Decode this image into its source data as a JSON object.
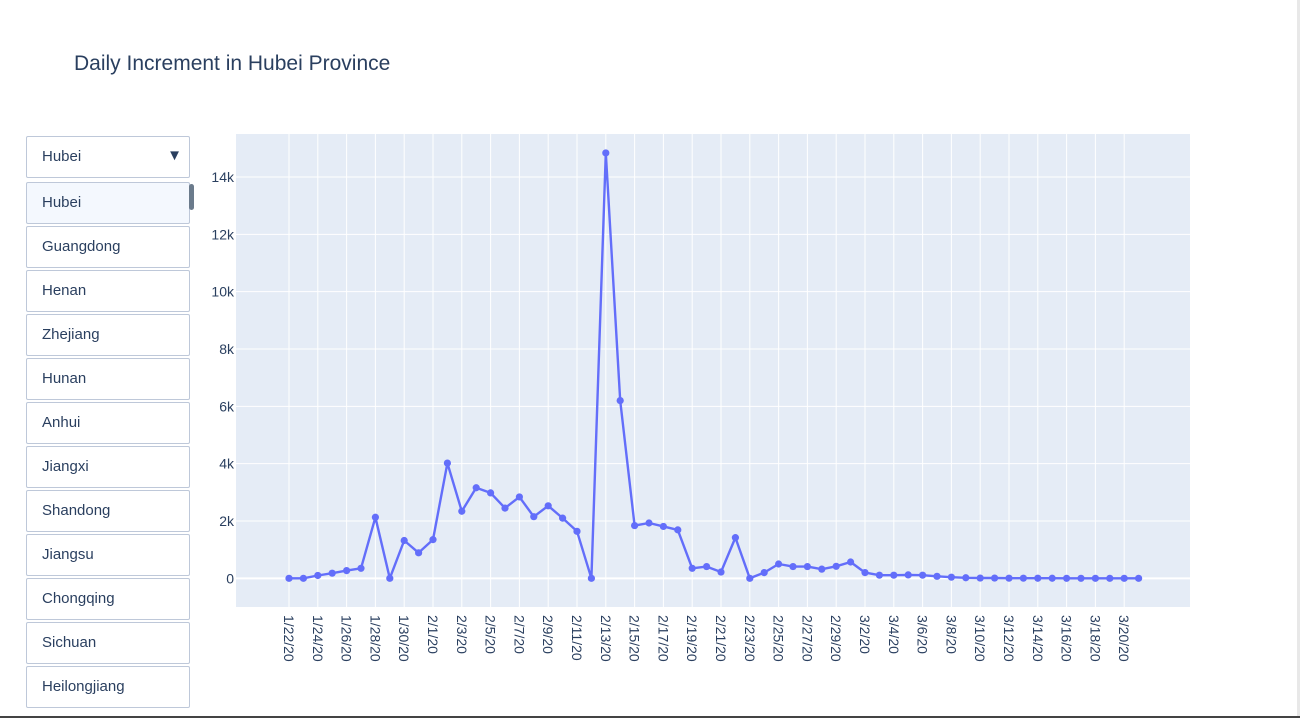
{
  "title": "Daily Increment in Hubei Province",
  "dropdown": {
    "selected": "Hubei",
    "arrow_icon": "triangle-down-icon",
    "options": [
      "Hubei",
      "Guangdong",
      "Henan",
      "Zhejiang",
      "Hunan",
      "Anhui",
      "Jiangxi",
      "Shandong",
      "Jiangsu",
      "Chongqing",
      "Sichuan",
      "Heilongjiang"
    ]
  },
  "colors": {
    "line": "#636efa",
    "plot_bg": "#e5ecf6",
    "grid": "#ffffff",
    "text": "#2a3f5f"
  },
  "chart_data": {
    "type": "line",
    "title": "Daily Increment in Hubei Province",
    "xlabel": "",
    "ylabel": "",
    "ylim": [
      -1000,
      15500
    ],
    "yticks": [
      0,
      2000,
      4000,
      6000,
      8000,
      10000,
      12000,
      14000
    ],
    "ytick_labels": [
      "0",
      "2k",
      "4k",
      "6k",
      "8k",
      "10k",
      "12k",
      "14k"
    ],
    "xtick_labels": [
      "1/22/20",
      "1/24/20",
      "1/26/20",
      "1/28/20",
      "1/30/20",
      "2/1/20",
      "2/3/20",
      "2/5/20",
      "2/7/20",
      "2/9/20",
      "2/11/20",
      "2/13/20",
      "2/15/20",
      "2/17/20",
      "2/19/20",
      "2/21/20",
      "2/23/20",
      "2/25/20",
      "2/27/20",
      "2/29/20",
      "3/2/20",
      "3/4/20",
      "3/6/20",
      "3/8/20",
      "3/10/20",
      "3/12/20",
      "3/14/20",
      "3/16/20",
      "3/18/20",
      "3/20/20"
    ],
    "grid": true,
    "series": [
      {
        "name": "",
        "mode": "lines+markers",
        "x": [
          "1/22/20",
          "1/23/20",
          "1/24/20",
          "1/25/20",
          "1/26/20",
          "1/27/20",
          "1/28/20",
          "1/29/20",
          "1/30/20",
          "1/31/20",
          "2/1/20",
          "2/2/20",
          "2/3/20",
          "2/4/20",
          "2/5/20",
          "2/6/20",
          "2/7/20",
          "2/8/20",
          "2/9/20",
          "2/10/20",
          "2/11/20",
          "2/12/20",
          "2/13/20",
          "2/14/20",
          "2/15/20",
          "2/16/20",
          "2/17/20",
          "2/18/20",
          "2/19/20",
          "2/20/20",
          "2/21/20",
          "2/22/20",
          "2/23/20",
          "2/24/20",
          "2/25/20",
          "2/26/20",
          "2/27/20",
          "2/28/20",
          "2/29/20",
          "3/1/20",
          "3/2/20",
          "3/3/20",
          "3/4/20",
          "3/5/20",
          "3/6/20",
          "3/7/20",
          "3/8/20",
          "3/9/20",
          "3/10/20",
          "3/11/20",
          "3/12/20",
          "3/13/20",
          "3/14/20",
          "3/15/20",
          "3/16/20",
          "3/17/20",
          "3/18/20",
          "3/19/20",
          "3/20/20",
          "3/21/20"
        ],
        "values": [
          0,
          0,
          100,
          180,
          270,
          350,
          2130,
          0,
          1320,
          890,
          1350,
          4020,
          2340,
          3160,
          2980,
          2450,
          2840,
          2150,
          2530,
          2100,
          1640,
          0,
          14840,
          6200,
          1840,
          1930,
          1810,
          1690,
          350,
          410,
          220,
          1420,
          0,
          200,
          500,
          410,
          410,
          320,
          420,
          570,
          200,
          110,
          110,
          120,
          110,
          70,
          40,
          20,
          10,
          10,
          5,
          5,
          4,
          3,
          1,
          1,
          0,
          0,
          0,
          0
        ]
      }
    ]
  }
}
